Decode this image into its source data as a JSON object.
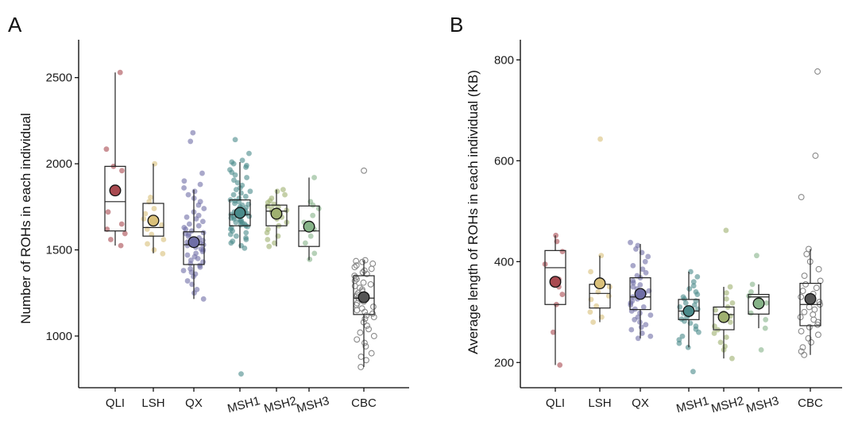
{
  "chart_data": [
    {
      "panel": "A",
      "type": "box",
      "ylabel": "Number of ROHs in each individual",
      "ylim": [
        700,
        2720
      ],
      "yticks": [
        1000,
        1500,
        2000,
        2500
      ],
      "categories": [
        "QLI",
        "LSH",
        "QX",
        "MSH1",
        "MSH2",
        "MSH3",
        "CBC"
      ],
      "colors": [
        "#a94a50",
        "#d9c07a",
        "#6f6ea6",
        "#4a8a8a",
        "#9fb070",
        "#86b388",
        "#7f7f7f"
      ],
      "boxes": [
        {
          "min": 1525,
          "q1": 1610,
          "median": 1780,
          "q3": 1985,
          "max": 2530,
          "mean": 1845
        },
        {
          "min": 1480,
          "q1": 1580,
          "median": 1630,
          "q3": 1770,
          "max": 2000,
          "mean": 1670
        },
        {
          "min": 1215,
          "q1": 1415,
          "median": 1530,
          "q3": 1605,
          "max": 1850,
          "mean": 1545
        },
        {
          "min": 1510,
          "q1": 1640,
          "median": 1705,
          "q3": 1790,
          "max": 2010,
          "mean": 1715
        },
        {
          "min": 1520,
          "q1": 1640,
          "median": 1725,
          "q3": 1760,
          "max": 1850,
          "mean": 1710
        },
        {
          "min": 1440,
          "q1": 1520,
          "median": 1610,
          "q3": 1755,
          "max": 1920,
          "mean": 1635
        },
        {
          "min": 820,
          "q1": 1125,
          "median": 1220,
          "q3": 1350,
          "max": 1440,
          "mean": 1225
        }
      ],
      "points": [
        [
          2530,
          2085,
          1985,
          1960,
          1720,
          1650,
          1620,
          1595,
          1560,
          1525
        ],
        [
          2000,
          1805,
          1780,
          1740,
          1710,
          1680,
          1645,
          1620,
          1590,
          1560,
          1535,
          1500,
          1478
        ],
        [
          2180,
          2130,
          1945,
          1900,
          1880,
          1860,
          1840,
          1820,
          1800,
          1780,
          1760,
          1740,
          1720,
          1700,
          1690,
          1680,
          1665,
          1650,
          1640,
          1630,
          1620,
          1610,
          1600,
          1595,
          1590,
          1580,
          1570,
          1560,
          1555,
          1545,
          1540,
          1530,
          1525,
          1515,
          1505,
          1500,
          1490,
          1480,
          1470,
          1460,
          1450,
          1440,
          1430,
          1420,
          1410,
          1400,
          1390,
          1380,
          1370,
          1360,
          1345,
          1320,
          1300,
          1270,
          1250,
          1215
        ],
        [
          2140,
          2060,
          2020,
          2010,
          2000,
          1990,
          1980,
          1965,
          1950,
          1935,
          1920,
          1905,
          1890,
          1875,
          1860,
          1850,
          1840,
          1830,
          1820,
          1810,
          1800,
          1790,
          1785,
          1780,
          1770,
          1765,
          1760,
          1750,
          1745,
          1740,
          1735,
          1730,
          1725,
          1720,
          1715,
          1710,
          1705,
          1700,
          1695,
          1690,
          1685,
          1680,
          1675,
          1670,
          1665,
          1660,
          1655,
          1650,
          1645,
          1640,
          1635,
          1630,
          1620,
          1610,
          1600,
          1590,
          1580,
          1570,
          1560,
          1550,
          1540,
          1525,
          1510,
          780
        ],
        [
          1850,
          1840,
          1820,
          1800,
          1785,
          1775,
          1765,
          1755,
          1750,
          1740,
          1730,
          1720,
          1710,
          1700,
          1690,
          1680,
          1660,
          1640,
          1620,
          1600,
          1580,
          1560,
          1540,
          1520
        ],
        [
          1920,
          1780,
          1760,
          1740,
          1700,
          1660,
          1620,
          1580,
          1540,
          1480,
          1445
        ],
        [
          1960,
          1440,
          1435,
          1430,
          1420,
          1410,
          1400,
          1390,
          1380,
          1370,
          1360,
          1350,
          1340,
          1330,
          1320,
          1310,
          1300,
          1290,
          1280,
          1270,
          1260,
          1250,
          1240,
          1230,
          1220,
          1210,
          1200,
          1190,
          1180,
          1170,
          1160,
          1150,
          1140,
          1130,
          1120,
          1110,
          1100,
          1080,
          1060,
          1040,
          1020,
          1000,
          980,
          960,
          940,
          900,
          880,
          860,
          820
        ]
      ]
    },
    {
      "panel": "B",
      "type": "box",
      "ylabel": "Average length of ROHs in each individual (KB)",
      "ylim": [
        150,
        840
      ],
      "yticks": [
        200,
        400,
        600,
        800
      ],
      "categories": [
        "QLI",
        "LSH",
        "QX",
        "MSH1",
        "MSH2",
        "MSH3",
        "CBC"
      ],
      "colors": [
        "#a94a50",
        "#d9c07a",
        "#6f6ea6",
        "#4a8a8a",
        "#9fb070",
        "#86b388",
        "#7f7f7f"
      ],
      "boxes": [
        {
          "min": 195,
          "q1": 315,
          "median": 388,
          "q3": 422,
          "max": 452,
          "mean": 360
        },
        {
          "min": 280,
          "q1": 308,
          "median": 337,
          "q3": 355,
          "max": 412,
          "mean": 357
        },
        {
          "min": 248,
          "q1": 305,
          "median": 330,
          "q3": 368,
          "max": 435,
          "mean": 336
        },
        {
          "min": 230,
          "q1": 285,
          "median": 302,
          "q3": 325,
          "max": 380,
          "mean": 302
        },
        {
          "min": 208,
          "q1": 265,
          "median": 295,
          "q3": 310,
          "max": 350,
          "mean": 290
        },
        {
          "min": 268,
          "q1": 296,
          "median": 330,
          "q3": 335,
          "max": 355,
          "mean": 317
        },
        {
          "min": 215,
          "q1": 273,
          "median": 315,
          "q3": 357,
          "max": 425,
          "mean": 326
        }
      ],
      "points": [
        [
          452,
          440,
          420,
          395,
          365,
          350,
          335,
          315,
          260,
          195
        ],
        [
          643,
          412,
          380,
          360,
          350,
          340,
          332,
          325,
          312,
          300,
          290,
          280
        ],
        [
          438,
          432,
          425,
          418,
          410,
          400,
          392,
          385,
          378,
          372,
          368,
          362,
          358,
          354,
          350,
          346,
          342,
          338,
          334,
          330,
          326,
          322,
          318,
          314,
          310,
          306,
          302,
          298,
          294,
          290,
          285,
          280,
          275,
          270,
          265,
          258,
          252,
          248
        ],
        [
          380,
          370,
          360,
          352,
          346,
          340,
          335,
          330,
          326,
          322,
          318,
          314,
          310,
          306,
          302,
          298,
          294,
          290,
          286,
          282,
          278,
          272,
          266,
          260,
          252,
          245,
          238,
          230,
          182
        ],
        [
          462,
          350,
          338,
          326,
          318,
          310,
          304,
          298,
          292,
          286,
          280,
          272,
          265,
          258,
          250,
          240,
          232,
          225,
          208
        ],
        [
          412,
          355,
          340,
          332,
          326,
          318,
          310,
          298,
          285,
          268,
          225
        ],
        [
          777,
          610,
          528,
          425,
          415,
          400,
          385,
          372,
          362,
          355,
          348,
          342,
          336,
          330,
          325,
          320,
          315,
          310,
          305,
          300,
          295,
          290,
          285,
          280,
          275,
          270,
          262,
          255,
          248,
          240,
          230,
          222,
          215
        ]
      ]
    }
  ]
}
